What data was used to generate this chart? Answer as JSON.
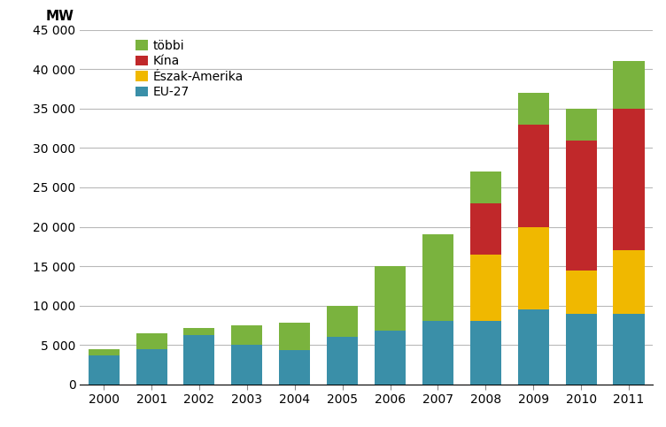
{
  "years": [
    2000,
    2001,
    2002,
    2003,
    2004,
    2005,
    2006,
    2007,
    2008,
    2009,
    2010,
    2011
  ],
  "eu27": [
    3700,
    4500,
    6200,
    5000,
    4300,
    6000,
    6800,
    8000,
    8000,
    9500,
    9000,
    9000
  ],
  "eszak_amerika": [
    0,
    0,
    0,
    0,
    0,
    0,
    0,
    0,
    8500,
    10500,
    5500,
    8000
  ],
  "kina": [
    0,
    0,
    0,
    0,
    0,
    0,
    0,
    0,
    6500,
    13000,
    16500,
    18000
  ],
  "tobbi": [
    800,
    2000,
    1000,
    2500,
    3500,
    4000,
    8200,
    11000,
    4000,
    4000,
    4000,
    6000
  ],
  "colors": {
    "eu27": "#3a8fa8",
    "eszak_amerika": "#f0b800",
    "kina": "#c0282a",
    "tobbi": "#7ab33e"
  },
  "labels": {
    "eu27": "EU-27",
    "eszak_amerika": "Észak-Amerika",
    "kina": "Kína",
    "tobbi": "többi"
  },
  "mw_label": "MW",
  "ylim": [
    0,
    45000
  ],
  "yticks": [
    0,
    5000,
    10000,
    15000,
    20000,
    25000,
    30000,
    35000,
    40000,
    45000
  ],
  "background_color": "#ffffff",
  "grid_color": "#b8b8b8"
}
